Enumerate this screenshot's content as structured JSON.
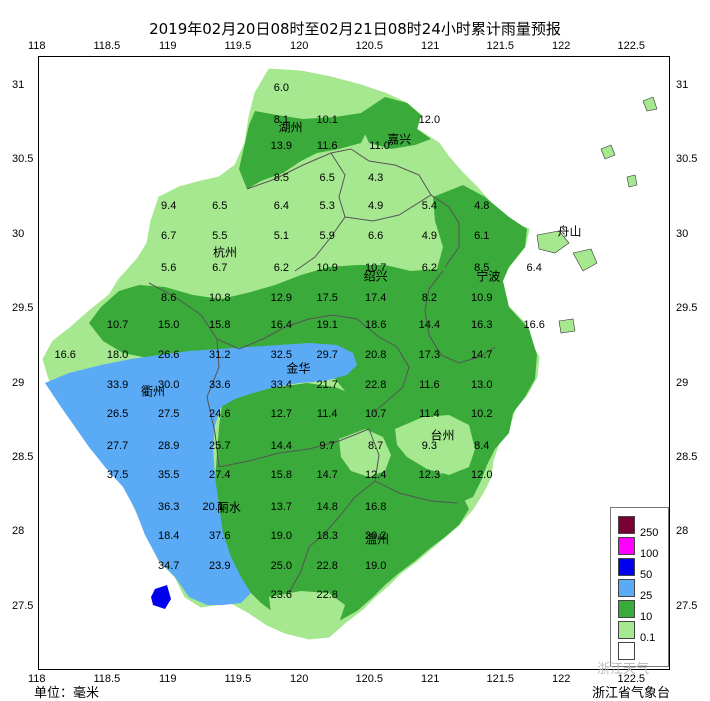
{
  "title": "2019年02月20日08时至02月21日08时24小时累计雨量预报",
  "unit_label": "单位：毫米",
  "source_label": "浙江省气象台",
  "watermark": "浙江天气",
  "x_ticks": [
    "118",
    "118.5",
    "119",
    "119.5",
    "120",
    "120.5",
    "121",
    "121.5",
    "122",
    "122.5"
  ],
  "y_ticks": [
    "31",
    "30.5",
    "30",
    "29.5",
    "29",
    "28.5",
    "28",
    "27.5"
  ],
  "legend": {
    "labels": [
      "250",
      "100",
      "50",
      "25",
      "10",
      "0.1"
    ],
    "colors": [
      "#7a0033",
      "#ff00ff",
      "#0000ee",
      "#5aaaf5",
      "#3aaa3a",
      "#a6e890",
      "#ffffff"
    ]
  },
  "cities": [
    {
      "name": "湖州",
      "lon": 119.92,
      "lat": 30.73
    },
    {
      "name": "嘉兴",
      "lon": 120.75,
      "lat": 30.65
    },
    {
      "name": "杭州",
      "lon": 119.42,
      "lat": 29.89
    },
    {
      "name": "绍兴",
      "lon": 120.57,
      "lat": 29.73
    },
    {
      "name": "宁波",
      "lon": 121.43,
      "lat": 29.73
    },
    {
      "name": "舟山",
      "lon": 122.05,
      "lat": 30.03
    },
    {
      "name": "金华",
      "lon": 119.98,
      "lat": 29.11
    },
    {
      "name": "衢州",
      "lon": 118.87,
      "lat": 28.96
    },
    {
      "name": "台州",
      "lon": 121.08,
      "lat": 28.66
    },
    {
      "name": "丽水",
      "lon": 119.45,
      "lat": 28.18
    },
    {
      "name": "温州",
      "lon": 120.58,
      "lat": 27.96
    }
  ],
  "values": [
    {
      "v": "6.0",
      "lon": 119.85,
      "lat": 30.99
    },
    {
      "v": "8.1",
      "lon": 119.85,
      "lat": 30.78
    },
    {
      "v": "10.1",
      "lon": 120.2,
      "lat": 30.78
    },
    {
      "v": "12.0",
      "lon": 120.98,
      "lat": 30.78
    },
    {
      "v": "13.9",
      "lon": 119.85,
      "lat": 30.6
    },
    {
      "v": "11.6",
      "lon": 120.2,
      "lat": 30.6
    },
    {
      "v": "11.0",
      "lon": 120.6,
      "lat": 30.6
    },
    {
      "v": "8.5",
      "lon": 119.85,
      "lat": 30.39
    },
    {
      "v": "6.5",
      "lon": 120.2,
      "lat": 30.39
    },
    {
      "v": "4.3",
      "lon": 120.57,
      "lat": 30.39
    },
    {
      "v": "9.4",
      "lon": 118.99,
      "lat": 30.2
    },
    {
      "v": "6.5",
      "lon": 119.38,
      "lat": 30.2
    },
    {
      "v": "6.4",
      "lon": 119.85,
      "lat": 30.2
    },
    {
      "v": "5.3",
      "lon": 120.2,
      "lat": 30.2
    },
    {
      "v": "4.9",
      "lon": 120.57,
      "lat": 30.2
    },
    {
      "v": "5.4",
      "lon": 120.98,
      "lat": 30.2
    },
    {
      "v": "4.8",
      "lon": 121.38,
      "lat": 30.2
    },
    {
      "v": "6.7",
      "lon": 118.99,
      "lat": 30.0
    },
    {
      "v": "5.5",
      "lon": 119.38,
      "lat": 30.0
    },
    {
      "v": "5.1",
      "lon": 119.85,
      "lat": 30.0
    },
    {
      "v": "5.9",
      "lon": 120.2,
      "lat": 30.0
    },
    {
      "v": "6.6",
      "lon": 120.57,
      "lat": 30.0
    },
    {
      "v": "4.9",
      "lon": 120.98,
      "lat": 30.0
    },
    {
      "v": "6.1",
      "lon": 121.38,
      "lat": 30.0
    },
    {
      "v": "5.6",
      "lon": 118.99,
      "lat": 29.78
    },
    {
      "v": "6.7",
      "lon": 119.38,
      "lat": 29.78
    },
    {
      "v": "6.2",
      "lon": 119.85,
      "lat": 29.78
    },
    {
      "v": "10.9",
      "lon": 120.2,
      "lat": 29.78
    },
    {
      "v": "10.7",
      "lon": 120.57,
      "lat": 29.78
    },
    {
      "v": "6.2",
      "lon": 120.98,
      "lat": 29.78
    },
    {
      "v": "8.5",
      "lon": 121.38,
      "lat": 29.78
    },
    {
      "v": "6.4",
      "lon": 121.78,
      "lat": 29.78
    },
    {
      "v": "8.6",
      "lon": 118.99,
      "lat": 29.58
    },
    {
      "v": "10.8",
      "lon": 119.38,
      "lat": 29.58
    },
    {
      "v": "12.9",
      "lon": 119.85,
      "lat": 29.58
    },
    {
      "v": "17.5",
      "lon": 120.2,
      "lat": 29.58
    },
    {
      "v": "17.4",
      "lon": 120.57,
      "lat": 29.58
    },
    {
      "v": "8.2",
      "lon": 120.98,
      "lat": 29.58
    },
    {
      "v": "10.9",
      "lon": 121.38,
      "lat": 29.58
    },
    {
      "v": "10.7",
      "lon": 118.6,
      "lat": 29.4
    },
    {
      "v": "15.0",
      "lon": 118.99,
      "lat": 29.4
    },
    {
      "v": "15.8",
      "lon": 119.38,
      "lat": 29.4
    },
    {
      "v": "16.4",
      "lon": 119.85,
      "lat": 29.4
    },
    {
      "v": "19.1",
      "lon": 120.2,
      "lat": 29.4
    },
    {
      "v": "18.6",
      "lon": 120.57,
      "lat": 29.4
    },
    {
      "v": "14.4",
      "lon": 120.98,
      "lat": 29.4
    },
    {
      "v": "16.3",
      "lon": 121.38,
      "lat": 29.4
    },
    {
      "v": "16.6",
      "lon": 121.78,
      "lat": 29.4
    },
    {
      "v": "16.6",
      "lon": 118.2,
      "lat": 29.2
    },
    {
      "v": "18.0",
      "lon": 118.6,
      "lat": 29.2
    },
    {
      "v": "26.6",
      "lon": 118.99,
      "lat": 29.2
    },
    {
      "v": "31.2",
      "lon": 119.38,
      "lat": 29.2
    },
    {
      "v": "32.5",
      "lon": 119.85,
      "lat": 29.2
    },
    {
      "v": "29.7",
      "lon": 120.2,
      "lat": 29.2
    },
    {
      "v": "20.8",
      "lon": 120.57,
      "lat": 29.2
    },
    {
      "v": "17.3",
      "lon": 120.98,
      "lat": 29.2
    },
    {
      "v": "14.7",
      "lon": 121.38,
      "lat": 29.2
    },
    {
      "v": "33.9",
      "lon": 118.6,
      "lat": 29.0
    },
    {
      "v": "30.0",
      "lon": 118.99,
      "lat": 29.0
    },
    {
      "v": "33.6",
      "lon": 119.38,
      "lat": 29.0
    },
    {
      "v": "33.4",
      "lon": 119.85,
      "lat": 29.0
    },
    {
      "v": "21.7",
      "lon": 120.2,
      "lat": 29.0
    },
    {
      "v": "22.8",
      "lon": 120.57,
      "lat": 29.0
    },
    {
      "v": "11.6",
      "lon": 120.98,
      "lat": 29.0
    },
    {
      "v": "13.0",
      "lon": 121.38,
      "lat": 29.0
    },
    {
      "v": "26.5",
      "lon": 118.6,
      "lat": 28.8
    },
    {
      "v": "27.5",
      "lon": 118.99,
      "lat": 28.8
    },
    {
      "v": "24.6",
      "lon": 119.38,
      "lat": 28.8
    },
    {
      "v": "12.7",
      "lon": 119.85,
      "lat": 28.8
    },
    {
      "v": "11.4",
      "lon": 120.2,
      "lat": 28.8
    },
    {
      "v": "10.7",
      "lon": 120.57,
      "lat": 28.8
    },
    {
      "v": "11.4",
      "lon": 120.98,
      "lat": 28.8
    },
    {
      "v": "10.2",
      "lon": 121.38,
      "lat": 28.8
    },
    {
      "v": "27.7",
      "lon": 118.6,
      "lat": 28.59
    },
    {
      "v": "28.9",
      "lon": 118.99,
      "lat": 28.59
    },
    {
      "v": "25.7",
      "lon": 119.38,
      "lat": 28.59
    },
    {
      "v": "14.4",
      "lon": 119.85,
      "lat": 28.59
    },
    {
      "v": "9.7",
      "lon": 120.2,
      "lat": 28.59
    },
    {
      "v": "8.7",
      "lon": 120.57,
      "lat": 28.59
    },
    {
      "v": "9.3",
      "lon": 120.98,
      "lat": 28.59
    },
    {
      "v": "8.4",
      "lon": 121.38,
      "lat": 28.59
    },
    {
      "v": "37.5",
      "lon": 118.6,
      "lat": 28.39
    },
    {
      "v": "35.5",
      "lon": 118.99,
      "lat": 28.39
    },
    {
      "v": "27.4",
      "lon": 119.38,
      "lat": 28.39
    },
    {
      "v": "15.8",
      "lon": 119.85,
      "lat": 28.39
    },
    {
      "v": "14.7",
      "lon": 120.2,
      "lat": 28.39
    },
    {
      "v": "12.4",
      "lon": 120.57,
      "lat": 28.39
    },
    {
      "v": "12.3",
      "lon": 120.98,
      "lat": 28.39
    },
    {
      "v": "12.0",
      "lon": 121.38,
      "lat": 28.39
    },
    {
      "v": "36.3",
      "lon": 118.99,
      "lat": 28.18
    },
    {
      "v": "20.1",
      "lon": 119.33,
      "lat": 28.18
    },
    {
      "v": "13.7",
      "lon": 119.85,
      "lat": 28.18
    },
    {
      "v": "14.8",
      "lon": 120.2,
      "lat": 28.18
    },
    {
      "v": "16.8",
      "lon": 120.57,
      "lat": 28.18
    },
    {
      "v": "18.4",
      "lon": 118.99,
      "lat": 27.98
    },
    {
      "v": "37.6",
      "lon": 119.38,
      "lat": 27.98
    },
    {
      "v": "19.0",
      "lon": 119.85,
      "lat": 27.98
    },
    {
      "v": "18.3",
      "lon": 120.2,
      "lat": 27.98
    },
    {
      "v": "20.2",
      "lon": 120.57,
      "lat": 27.98
    },
    {
      "v": "34.7",
      "lon": 118.99,
      "lat": 27.78
    },
    {
      "v": "23.9",
      "lon": 119.38,
      "lat": 27.78
    },
    {
      "v": "25.0",
      "lon": 119.85,
      "lat": 27.78
    },
    {
      "v": "22.8",
      "lon": 120.2,
      "lat": 27.78
    },
    {
      "v": "19.0",
      "lon": 120.57,
      "lat": 27.78
    },
    {
      "v": "23.6",
      "lon": 119.85,
      "lat": 27.59
    },
    {
      "v": "22.8",
      "lon": 120.2,
      "lat": 27.59
    }
  ]
}
